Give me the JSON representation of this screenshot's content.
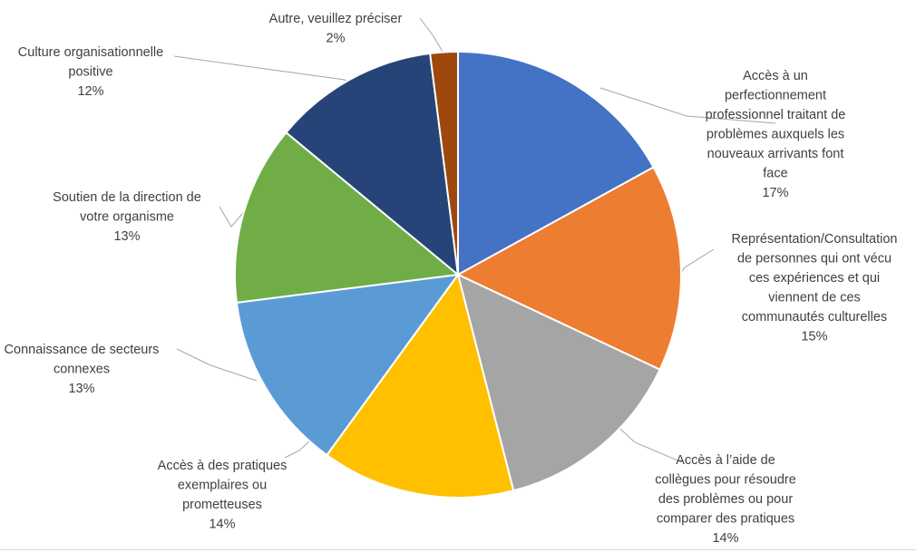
{
  "chart_data": {
    "type": "pie",
    "title": "",
    "start_angle_deg": 0,
    "direction": "clockwise",
    "slices": [
      {
        "label": "Accès à un perfectionnement professionnel traitant de problèmes auxquels les nouveaux arrivants font face",
        "value": 17,
        "value_label": "17%",
        "color": "#4472c4",
        "label_lines": [
          "Accès à un",
          "perfectionnement",
          "professionnel traitant de",
          "problèmes auxquels les",
          "nouveaux arrivants font",
          "face"
        ]
      },
      {
        "label": "Représentation/Consultation de personnes qui ont vécu ces expériences et qui viennent de ces communautés culturelles",
        "value": 15,
        "value_label": "15%",
        "color": "#ed7d31",
        "label_lines": [
          "Représentation/Consultation",
          "de personnes qui ont vécu",
          "ces expériences et qui",
          "viennent de ces",
          "communautés culturelles"
        ]
      },
      {
        "label": "Accès à l'aide de collègues pour résoudre des problèmes ou pour comparer des pratiques",
        "value": 14,
        "value_label": "14%",
        "color": "#a5a5a5",
        "label_lines": [
          "Accès à l’aide de",
          "collègues pour résoudre",
          "des problèmes ou pour",
          "comparer des pratiques"
        ]
      },
      {
        "label": "Accès à des pratiques exemplaires ou prometteuses",
        "value": 14,
        "value_label": "14%",
        "color": "#ffc000",
        "label_lines": [
          "Accès à des pratiques",
          "exemplaires ou",
          "prometteuses"
        ]
      },
      {
        "label": "Connaissance de secteurs connexes",
        "value": 13,
        "value_label": "13%",
        "color": "#5b9bd5",
        "label_lines": [
          "Connaissance de secteurs",
          "connexes"
        ]
      },
      {
        "label": "Soutien de la direction de votre organisme",
        "value": 13,
        "value_label": "13%",
        "color": "#70ad47",
        "label_lines": [
          "Soutien de la direction de",
          "votre organisme"
        ]
      },
      {
        "label": "Culture organisationnelle positive",
        "value": 12,
        "value_label": "12%",
        "color": "#264478",
        "label_lines": [
          "Culture organisationnelle",
          "positive"
        ]
      },
      {
        "label": "Autre, veuillez préciser",
        "value": 2,
        "value_label": "2%",
        "color": "#9e480e",
        "label_lines": [
          "Autre, veuillez préciser"
        ]
      }
    ]
  }
}
